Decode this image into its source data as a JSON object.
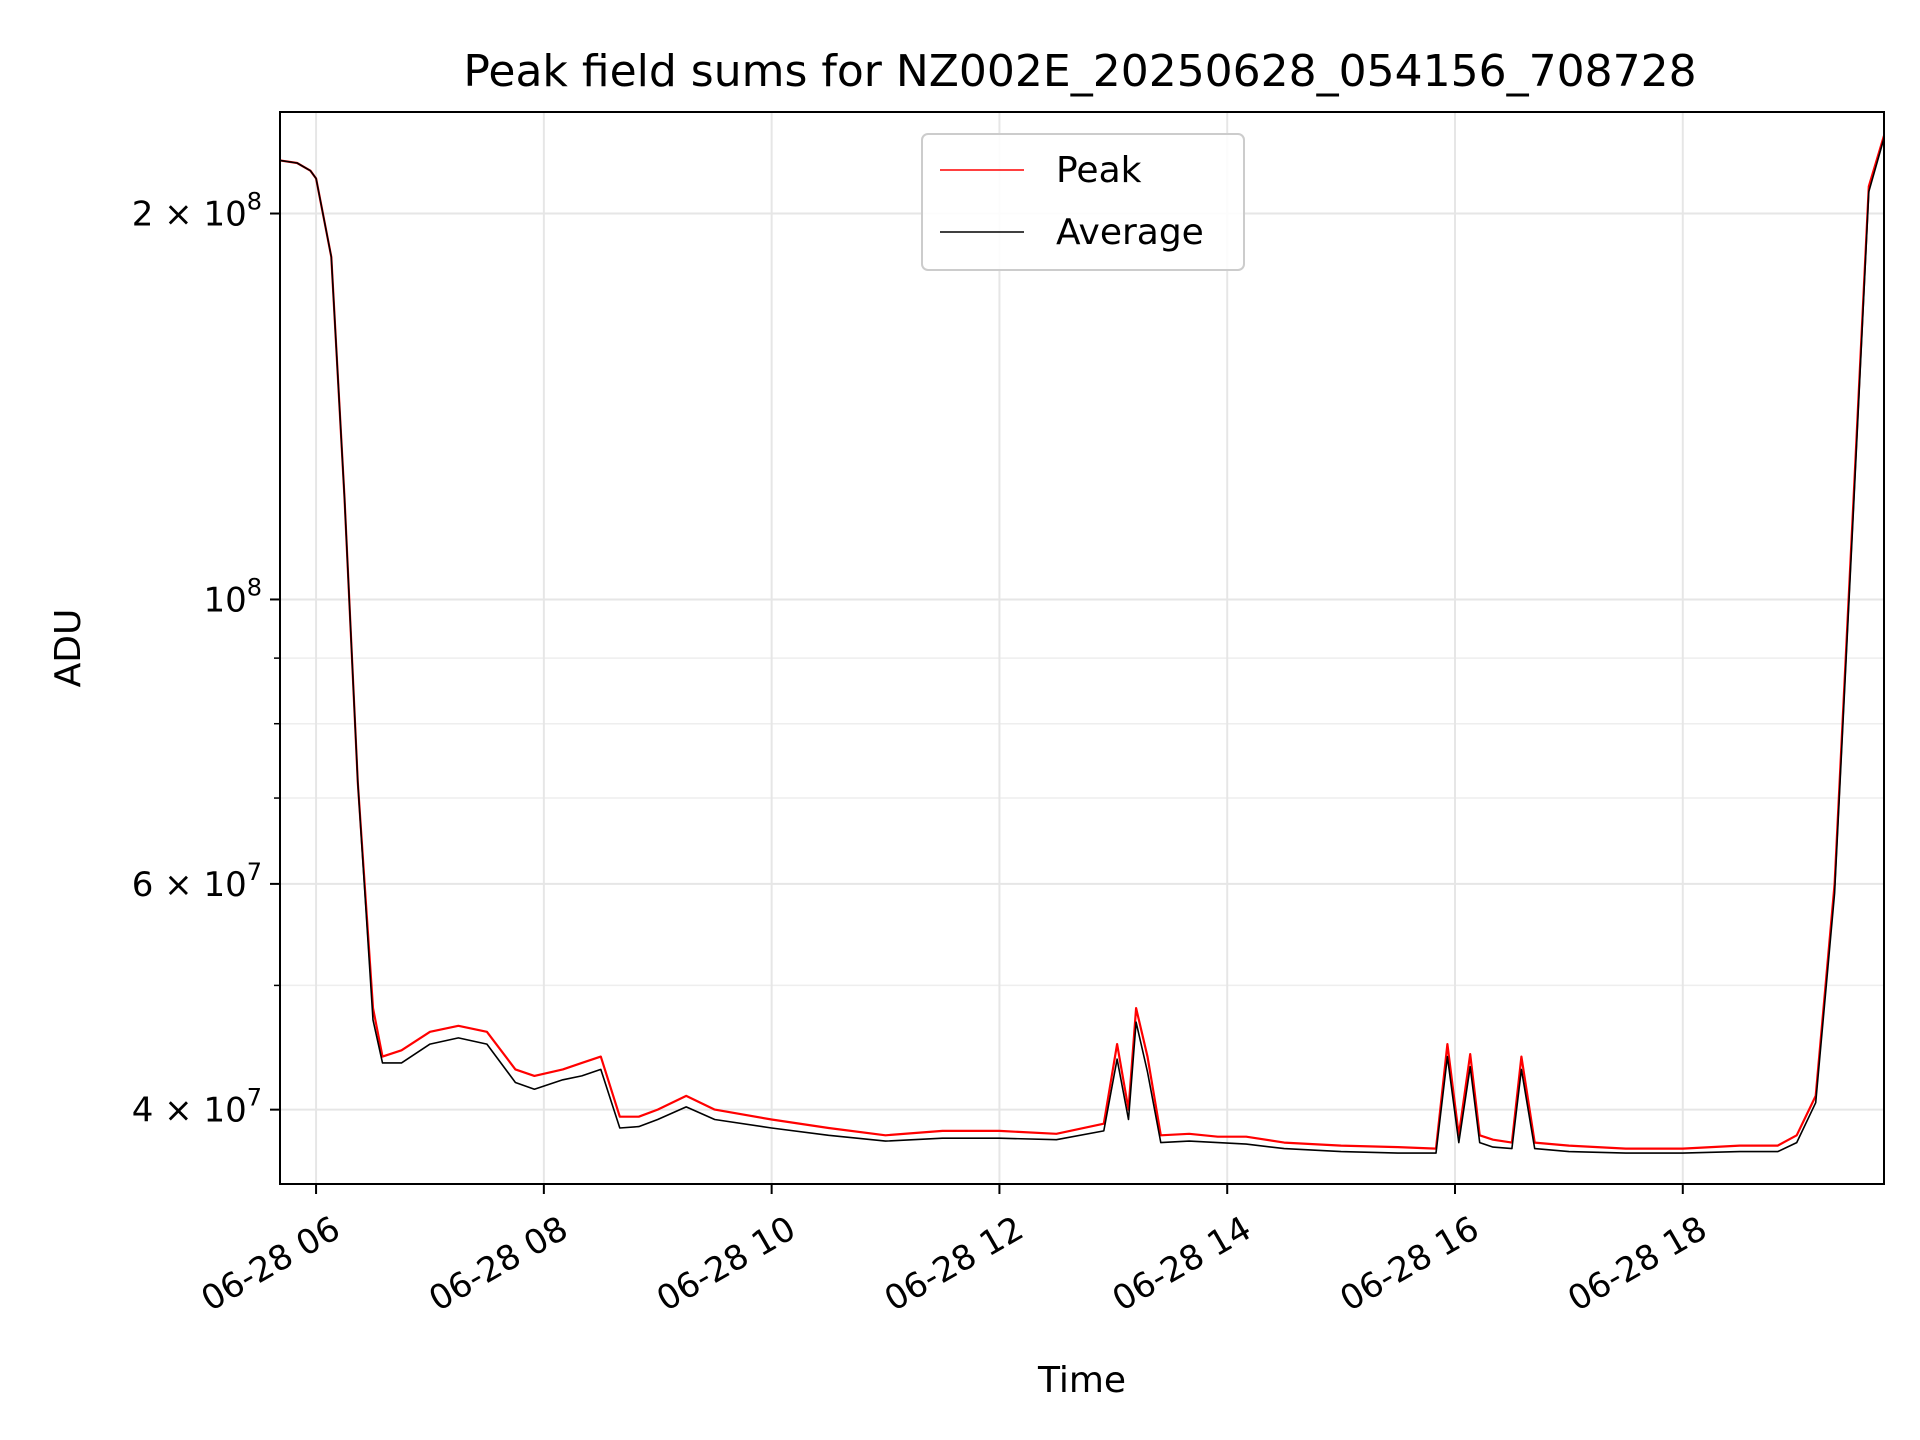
{
  "chart_data": {
    "type": "line",
    "title": "Peak field sums for NZ002E_20250628_054156_708728",
    "xlabel": "Time",
    "ylabel": "ADU",
    "x_range": [
      "2025-06-28 05:41",
      "2025-06-28 19:46"
    ],
    "y_scale": "log",
    "ylim": [
      35000000,
      240000000
    ],
    "grid": true,
    "legend_position": "upper center",
    "x_ticks": [
      {
        "value": "2025-06-28 06:00",
        "label": "06-28 06"
      },
      {
        "value": "2025-06-28 08:00",
        "label": "06-28 08"
      },
      {
        "value": "2025-06-28 10:00",
        "label": "06-28 10"
      },
      {
        "value": "2025-06-28 12:00",
        "label": "06-28 12"
      },
      {
        "value": "2025-06-28 14:00",
        "label": "06-28 14"
      },
      {
        "value": "2025-06-28 16:00",
        "label": "06-28 16"
      },
      {
        "value": "2025-06-28 18:00",
        "label": "06-28 18"
      }
    ],
    "y_major_ticks": [
      {
        "value": 40000000,
        "mantissa": "4",
        "exponent": "7"
      },
      {
        "value": 60000000,
        "mantissa": "6",
        "exponent": "7"
      },
      {
        "value": 100000000,
        "mantissa": "",
        "exponent": "8"
      },
      {
        "value": 200000000,
        "mantissa": "2",
        "exponent": "8"
      }
    ],
    "y_minor_ticks": [
      50000000,
      70000000,
      80000000,
      90000000
    ],
    "series": [
      {
        "name": "Peak",
        "color": "#ff0000",
        "x": [
          "2025-06-28 05:41",
          "2025-06-28 05:50",
          "2025-06-28 05:57",
          "2025-06-28 06:00",
          "2025-06-28 06:08",
          "2025-06-28 06:15",
          "2025-06-28 06:22",
          "2025-06-28 06:30",
          "2025-06-28 06:35",
          "2025-06-28 06:45",
          "2025-06-28 07:00",
          "2025-06-28 07:15",
          "2025-06-28 07:30",
          "2025-06-28 07:45",
          "2025-06-28 07:55",
          "2025-06-28 08:10",
          "2025-06-28 08:20",
          "2025-06-28 08:30",
          "2025-06-28 08:40",
          "2025-06-28 08:50",
          "2025-06-28 09:00",
          "2025-06-28 09:15",
          "2025-06-28 09:30",
          "2025-06-28 10:00",
          "2025-06-28 10:30",
          "2025-06-28 11:00",
          "2025-06-28 11:30",
          "2025-06-28 12:00",
          "2025-06-28 12:30",
          "2025-06-28 12:55",
          "2025-06-28 13:02",
          "2025-06-28 13:08",
          "2025-06-28 13:12",
          "2025-06-28 13:18",
          "2025-06-28 13:25",
          "2025-06-28 13:40",
          "2025-06-28 13:55",
          "2025-06-28 14:10",
          "2025-06-28 14:30",
          "2025-06-28 15:00",
          "2025-06-28 15:30",
          "2025-06-28 15:50",
          "2025-06-28 15:56",
          "2025-06-28 16:02",
          "2025-06-28 16:08",
          "2025-06-28 16:13",
          "2025-06-28 16:20",
          "2025-06-28 16:30",
          "2025-06-28 16:35",
          "2025-06-28 16:42",
          "2025-06-28 17:00",
          "2025-06-28 17:30",
          "2025-06-28 18:00",
          "2025-06-28 18:30",
          "2025-06-28 18:50",
          "2025-06-28 19:00",
          "2025-06-28 19:10",
          "2025-06-28 19:20",
          "2025-06-28 19:30",
          "2025-06-28 19:38",
          "2025-06-28 19:46"
        ],
        "values": [
          220000000,
          219000000,
          216000000,
          213000000,
          185000000,
          120000000,
          72000000,
          48000000,
          44000000,
          44500000,
          46000000,
          46500000,
          46000000,
          43000000,
          42500000,
          43000000,
          43500000,
          44000000,
          39500000,
          39500000,
          40000000,
          41000000,
          40000000,
          39300000,
          38700000,
          38200000,
          38500000,
          38500000,
          38300000,
          39000000,
          45000000,
          40000000,
          48000000,
          44000000,
          38200000,
          38300000,
          38100000,
          38100000,
          37700000,
          37500000,
          37400000,
          37300000,
          45000000,
          38200000,
          44200000,
          38200000,
          37900000,
          37700000,
          44000000,
          37700000,
          37500000,
          37300000,
          37300000,
          37500000,
          37500000,
          38200000,
          41000000,
          60000000,
          120000000,
          210000000,
          230000000
        ]
      },
      {
        "name": "Average",
        "color": "#000000",
        "x": [
          "2025-06-28 05:41",
          "2025-06-28 05:50",
          "2025-06-28 05:57",
          "2025-06-28 06:00",
          "2025-06-28 06:08",
          "2025-06-28 06:15",
          "2025-06-28 06:22",
          "2025-06-28 06:30",
          "2025-06-28 06:35",
          "2025-06-28 06:45",
          "2025-06-28 07:00",
          "2025-06-28 07:15",
          "2025-06-28 07:30",
          "2025-06-28 07:45",
          "2025-06-28 07:55",
          "2025-06-28 08:10",
          "2025-06-28 08:20",
          "2025-06-28 08:30",
          "2025-06-28 08:40",
          "2025-06-28 08:50",
          "2025-06-28 09:00",
          "2025-06-28 09:15",
          "2025-06-28 09:30",
          "2025-06-28 10:00",
          "2025-06-28 10:30",
          "2025-06-28 11:00",
          "2025-06-28 11:30",
          "2025-06-28 12:00",
          "2025-06-28 12:30",
          "2025-06-28 12:55",
          "2025-06-28 13:02",
          "2025-06-28 13:08",
          "2025-06-28 13:12",
          "2025-06-28 13:18",
          "2025-06-28 13:25",
          "2025-06-28 13:40",
          "2025-06-28 13:55",
          "2025-06-28 14:10",
          "2025-06-28 14:30",
          "2025-06-28 15:00",
          "2025-06-28 15:30",
          "2025-06-28 15:50",
          "2025-06-28 15:56",
          "2025-06-28 16:02",
          "2025-06-28 16:08",
          "2025-06-28 16:13",
          "2025-06-28 16:20",
          "2025-06-28 16:30",
          "2025-06-28 16:35",
          "2025-06-28 16:42",
          "2025-06-28 17:00",
          "2025-06-28 17:30",
          "2025-06-28 18:00",
          "2025-06-28 18:30",
          "2025-06-28 18:50",
          "2025-06-28 19:00",
          "2025-06-28 19:10",
          "2025-06-28 19:20",
          "2025-06-28 19:30",
          "2025-06-28 19:38",
          "2025-06-28 19:46"
        ],
        "values": [
          220000000,
          219000000,
          216000000,
          213000000,
          185000000,
          120000000,
          72000000,
          47000000,
          43500000,
          43500000,
          45000000,
          45500000,
          45000000,
          42000000,
          41500000,
          42200000,
          42500000,
          43000000,
          38700000,
          38800000,
          39300000,
          40200000,
          39300000,
          38700000,
          38200000,
          37800000,
          38000000,
          38000000,
          37900000,
          38500000,
          43800000,
          39300000,
          46800000,
          42800000,
          37700000,
          37800000,
          37700000,
          37600000,
          37300000,
          37100000,
          37000000,
          37000000,
          44000000,
          37700000,
          43200000,
          37700000,
          37400000,
          37300000,
          43000000,
          37300000,
          37100000,
          37000000,
          37000000,
          37100000,
          37100000,
          37700000,
          40500000,
          59000000,
          118000000,
          208000000,
          229000000
        ]
      }
    ]
  }
}
